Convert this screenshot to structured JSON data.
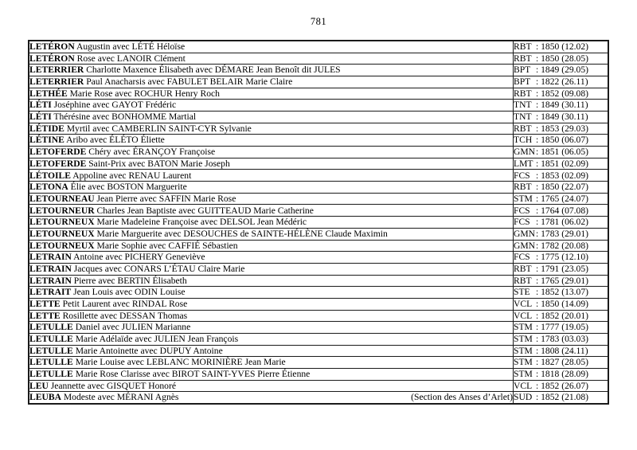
{
  "page": {
    "number": "781"
  },
  "table": {
    "rows": [
      {
        "surname": "LETÉRON",
        "rest": "Augustin avec LÉTÉ Héloïse",
        "code": "RBT",
        "record": ": 1850 (12.02)"
      },
      {
        "surname": "LETÉRON",
        "rest": "Rose avec LANOIR Clément",
        "code": "RBT",
        "record": ": 1850 (28.05)"
      },
      {
        "surname": "LETERRIER",
        "rest": "Charlotte Maxence Élisabeth avec DÉMARE Jean Benoît dit JULES",
        "code": "BPT",
        "record": ": 1849 (29.05)"
      },
      {
        "surname": "LETERRIER",
        "rest": "Paul Anacharsis avec FABULET BELAIR Marie Claire",
        "code": "BPT",
        "record": ": 1822 (26.11)"
      },
      {
        "surname": "LETHÉE",
        "rest": "Marie Rose avec ROCHUR Henry Roch",
        "code": "RBT",
        "record": ": 1852 (09.08)"
      },
      {
        "surname": "LÉTI",
        "rest": "Joséphine avec GAYOT Frédéric",
        "code": "TNT",
        "record": ": 1849 (30.11)"
      },
      {
        "surname": "LÉTI",
        "rest": "Thérésine avec BONHOMME Martial",
        "code": "TNT",
        "record": ": 1849 (30.11)"
      },
      {
        "surname": "LÉTIDE",
        "rest": "Myrtil avec CAMBERLIN SAINT-CYR Sylvanie",
        "code": "RBT",
        "record": ": 1853 (29.03)"
      },
      {
        "surname": "LÉTINE",
        "rest": "Aribo avec ÉLÉTO Éliette",
        "code": "TCH",
        "record": ": 1850 (06.07)"
      },
      {
        "surname": "LETOFERDE",
        "rest": "Chéry avec ÉRANÇOY Françoise",
        "code": "GMN",
        "record": ": 1851 (06.05)"
      },
      {
        "surname": "LETOFERDE",
        "rest": "Saint-Prix avec BATON Marie Joseph",
        "code": "LMT",
        "record": ": 1851 (02.09)"
      },
      {
        "surname": "LÉTOILE",
        "rest": "Appoline avec RENAU Laurent",
        "code": "FCS",
        "record": ": 1853 (02.09)"
      },
      {
        "surname": "LETONA",
        "rest": "Élie avec BOSTON Marguerite",
        "code": "RBT",
        "record": ": 1850 (22.07)"
      },
      {
        "surname": "LETOURNEAU",
        "rest": "Jean Pierre avec SAFFIN Marie Rose",
        "code": "STM",
        "record": ": 1765 (24.07)"
      },
      {
        "surname": "LETOURNEUR",
        "rest": "Charles Jean Baptiste avec GUITTEAUD Marie Catherine",
        "code": "FCS",
        "record": ": 1764 (07.08)"
      },
      {
        "surname": "LETOURNEUX",
        "rest": "Marie Madeleine Françoise avec DELSOL Jean Médéric",
        "code": "FCS",
        "record": ": 1781 (06.02)"
      },
      {
        "surname": "LETOURNEUX",
        "rest": "Marie Marguerite avec DESOUCHES de SAINTE-HÉLÈNE Claude Maximin",
        "code": "GMN",
        "record": ": 1783 (29.01)"
      },
      {
        "surname": "LETOURNEUX",
        "rest": "Marie Sophie avec CAFFIÉ Sébastien",
        "code": "GMN",
        "record": ": 1782 (20.08)"
      },
      {
        "surname": "LETRAIN",
        "rest": "Antoine avec PICHERY Geneviève",
        "code": "FCS",
        "record": ": 1775 (12.10)"
      },
      {
        "surname": "LETRAIN",
        "rest": "Jacques avec CONARS L’ÉTAU Claire Marie",
        "code": "RBT",
        "record": ": 1791 (23.05)"
      },
      {
        "surname": "LETRAIN",
        "rest": "Pierre avec BERTIN Élisabeth",
        "code": "RBT",
        "record": ": 1765 (29.01)"
      },
      {
        "surname": "LETRAIT",
        "rest": "Jean Louis avec ODIN Louise",
        "code": "STE",
        "record": ": 1852 (13.07)"
      },
      {
        "surname": "LETTE",
        "rest": "Petit Laurent avec RINDAL Rose",
        "code": "VCL",
        "record": ": 1850 (14.09)"
      },
      {
        "surname": "LETTE",
        "rest": "Rosillette avec DESSAN Thomas",
        "code": "VCL",
        "record": ": 1852 (20.01)"
      },
      {
        "surname": "LETULLE",
        "rest": "Daniel avec JULIEN Marianne",
        "code": "STM",
        "record": ": 1777 (19.05)"
      },
      {
        "surname": "LETULLE",
        "rest": "Marie Adélaïde avec JULIEN Jean François",
        "code": "STM",
        "record": ": 1783 (03.03)"
      },
      {
        "surname": "LETULLE",
        "rest": "Marie Antoinette avec DUPUY Antoine",
        "code": "STM",
        "record": ": 1808 (24.11)"
      },
      {
        "surname": "LETULLE",
        "rest": "Marie Louise avec LEBLANC MORINIÈRE Jean Marie",
        "code": "STM",
        "record": ": 1827 (28.05)"
      },
      {
        "surname": "LETULLE",
        "rest": "Marie Rose Clarisse avec BIROT SAINT-YVES Pierre Étienne",
        "code": "STM",
        "record": ": 1818 (28.09)"
      },
      {
        "surname": "LEU",
        "rest": "Jeannette avec GISQUET Honoré",
        "code": "VCL",
        "record": ": 1852 (26.07)"
      },
      {
        "surname": "LEUBA",
        "rest": "Modeste avec MÉRANI Agnès",
        "note": "(Section des Anses d’Arlet)",
        "code": "SUD",
        "record": ": 1852 (21.08)"
      }
    ]
  }
}
